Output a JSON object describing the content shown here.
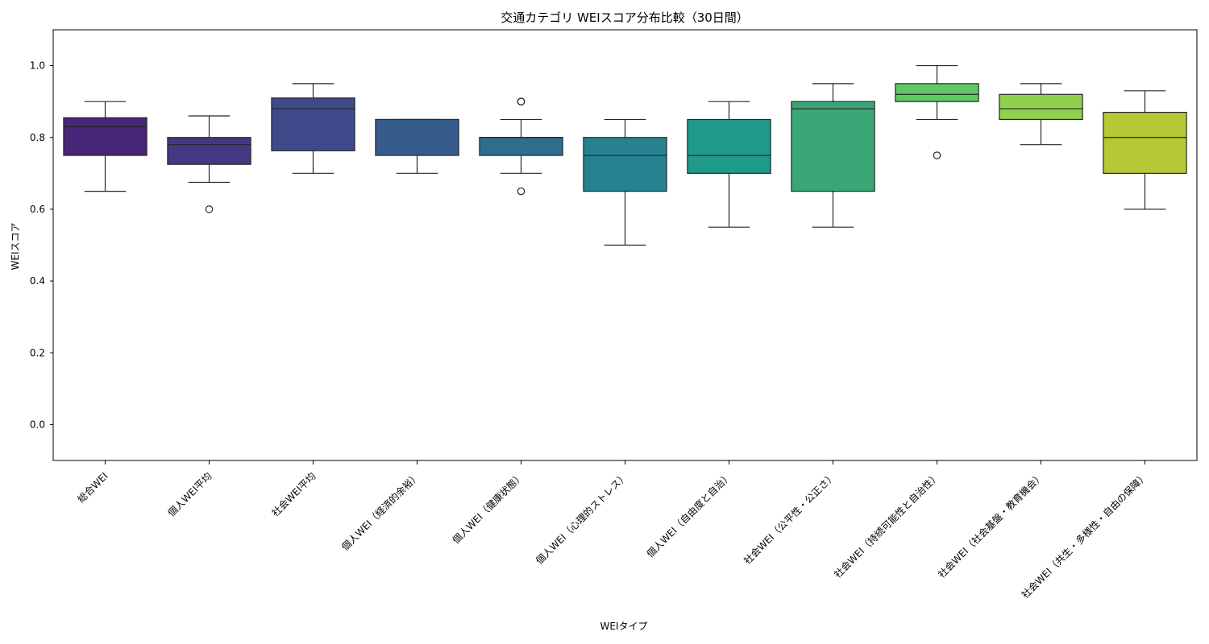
{
  "chart_data": {
    "type": "box",
    "title": "交通カテゴリ WEIスコア分布比較（30日間）",
    "xlabel": "WEIタイプ",
    "ylabel": "WEIスコア",
    "ylim": [
      -0.1,
      1.1
    ],
    "yticks": [
      0.0,
      0.2,
      0.4,
      0.6,
      0.8,
      1.0
    ],
    "grid": false,
    "categories": [
      {
        "label": "総合WEI",
        "color": "#482576",
        "whislo": 0.65,
        "q1": 0.75,
        "med": 0.83,
        "q3": 0.855,
        "whishi": 0.9,
        "outliers": []
      },
      {
        "label": "個人WEI平均",
        "color": "#453882",
        "whislo": 0.675,
        "q1": 0.725,
        "med": 0.78,
        "q3": 0.8,
        "whishi": 0.86,
        "outliers": [
          0.6
        ]
      },
      {
        "label": "社会WEI平均",
        "color": "#3e4a89",
        "whislo": 0.7,
        "q1": 0.763,
        "med": 0.88,
        "q3": 0.91,
        "whishi": 0.95,
        "outliers": []
      },
      {
        "label": "個人WEI（経済的余裕）",
        "color": "#365c8d",
        "whislo": 0.7,
        "q1": 0.75,
        "med": 0.85,
        "q3": 0.85,
        "whishi": 0.85,
        "outliers": []
      },
      {
        "label": "個人WEI（健康状態）",
        "color": "#2e6d8e",
        "whislo": 0.7,
        "q1": 0.75,
        "med": 0.8,
        "q3": 0.8,
        "whishi": 0.85,
        "outliers": [
          0.9,
          0.9,
          0.65
        ]
      },
      {
        "label": "個人WEI（心理的ストレス）",
        "color": "#26828e",
        "whislo": 0.5,
        "q1": 0.65,
        "med": 0.75,
        "q3": 0.8,
        "whishi": 0.85,
        "outliers": []
      },
      {
        "label": "個人WEI（自由度と自治）",
        "color": "#1f9a8a",
        "whislo": 0.55,
        "q1": 0.7,
        "med": 0.75,
        "q3": 0.85,
        "whishi": 0.9,
        "outliers": []
      },
      {
        "label": "社会WEI（公平性・公正さ）",
        "color": "#3aa675",
        "whislo": 0.55,
        "q1": 0.65,
        "med": 0.88,
        "q3": 0.9,
        "whishi": 0.95,
        "outliers": []
      },
      {
        "label": "社会WEI（持続可能性と自治性）",
        "color": "#5ec962",
        "whislo": 0.85,
        "q1": 0.9,
        "med": 0.92,
        "q3": 0.95,
        "whishi": 1.0,
        "outliers": [
          0.75
        ]
      },
      {
        "label": "社会WEI（社会基盤・教育機会）",
        "color": "#8fd14f",
        "whislo": 0.78,
        "q1": 0.85,
        "med": 0.88,
        "q3": 0.92,
        "whishi": 0.95,
        "outliers": []
      },
      {
        "label": "社会WEI（共生・多様性・自由の保障）",
        "color": "#b5c935",
        "whislo": 0.6,
        "q1": 0.7,
        "med": 0.8,
        "q3": 0.87,
        "whishi": 0.93,
        "outliers": []
      }
    ]
  }
}
